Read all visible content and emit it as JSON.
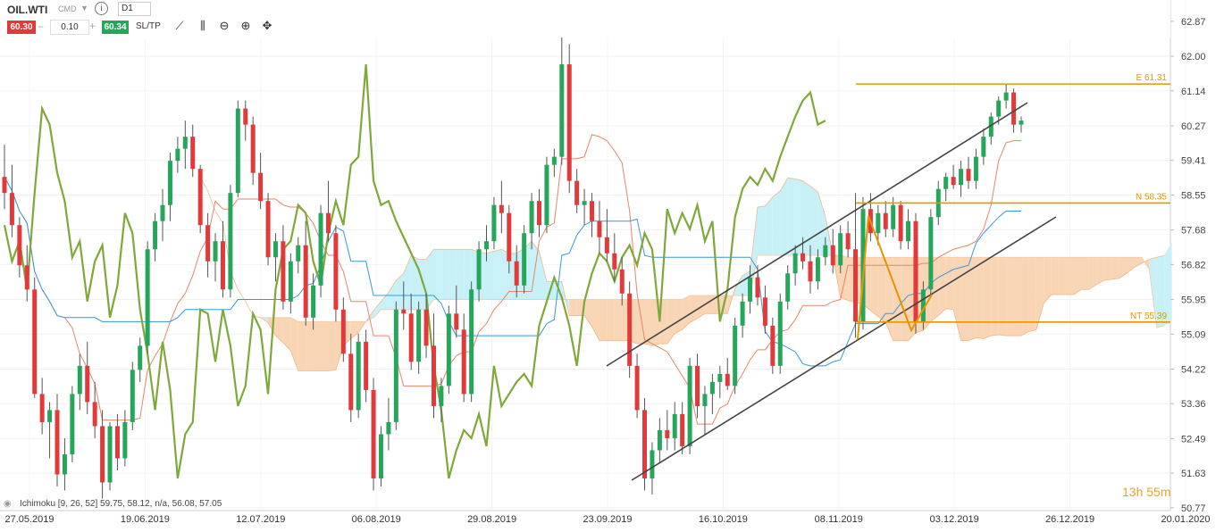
{
  "toolbar": {
    "symbol": "OIL.WTI",
    "type": "CMD",
    "info_icon": "info-icon",
    "timeframe": "D1",
    "sell_price": "60.30",
    "volume": "0.10",
    "buy_price": "60.34",
    "sltp_label": "SL/TP",
    "tools": [
      "line-tool-icon",
      "candles-icon",
      "zoom-out-icon",
      "zoom-in-icon",
      "crosshair-icon"
    ]
  },
  "indicator_label": "Ichimoku [9, 26, 52] 59.75, 58.12, n/a, 56.08, 57.05",
  "timer": "13h 55m",
  "colors": {
    "bull": "#26a65b",
    "bear": "#e23a3a",
    "cloud_bull": "#c7f0f7",
    "cloud_bear": "#f8d5b4",
    "chikou": "#7fa83a",
    "tenkan": "#e8866a",
    "kijun": "#3a97d9",
    "level": "#e69500",
    "channel": "#444444"
  },
  "chart_data": {
    "type": "candlestick",
    "instrument": "OIL.WTI",
    "timeframe": "D1",
    "y_ticks": [
      50.77,
      51.63,
      52.49,
      53.36,
      54.22,
      55.09,
      55.95,
      56.82,
      57.68,
      58.55,
      59.41,
      60.27,
      61.14,
      62.0,
      62.87
    ],
    "x_tick_labels": [
      "27.05.2019",
      "19.06.2019",
      "12.07.2019",
      "06.08.2019",
      "29.08.2019",
      "23.09.2019",
      "16.10.2019",
      "08.11.2019",
      "03.12.2019",
      "26.12.2019",
      "20.01.2020"
    ],
    "ylim": [
      50.7,
      63.4
    ],
    "levels": [
      {
        "label": "E 61.31",
        "value": 61.31
      },
      {
        "label": "N 58.35",
        "value": 58.35
      },
      {
        "label": "NT 55.39",
        "value": 55.39
      }
    ],
    "candles_ohlc_sample": [
      [
        59.0,
        59.8,
        58.2,
        58.6
      ],
      [
        58.6,
        59.3,
        57.5,
        57.8
      ],
      [
        57.8,
        58.0,
        56.5,
        56.8
      ],
      [
        56.8,
        57.3,
        55.9,
        56.2
      ],
      [
        56.2,
        56.5,
        53.5,
        53.6
      ],
      [
        53.6,
        54.0,
        52.6,
        52.9
      ],
      [
        52.9,
        53.4,
        52.0,
        53.2
      ],
      [
        53.2,
        53.6,
        51.3,
        51.6
      ],
      [
        51.6,
        52.5,
        51.2,
        52.1
      ],
      [
        52.1,
        53.8,
        51.9,
        53.6
      ],
      [
        53.6,
        54.6,
        53.2,
        54.3
      ],
      [
        54.3,
        54.9,
        53.1,
        53.4
      ],
      [
        53.4,
        53.9,
        52.5,
        52.8
      ],
      [
        52.8,
        53.2,
        51.0,
        51.4
      ],
      [
        51.4,
        52.9,
        51.2,
        52.8
      ],
      [
        52.8,
        53.1,
        51.7,
        52.0
      ],
      [
        52.0,
        53.2,
        51.8,
        52.9
      ],
      [
        52.9,
        54.4,
        52.7,
        54.2
      ],
      [
        54.2,
        55.0,
        53.9,
        54.8
      ],
      [
        54.8,
        57.4,
        54.6,
        57.2
      ],
      [
        57.2,
        58.1,
        56.9,
        57.9
      ],
      [
        57.9,
        58.7,
        57.4,
        58.3
      ],
      [
        58.3,
        59.6,
        57.9,
        59.4
      ],
      [
        59.4,
        60.0,
        59.1,
        59.7
      ],
      [
        59.7,
        60.4,
        59.2,
        60.0
      ],
      [
        60.0,
        60.3,
        59.0,
        59.2
      ],
      [
        59.2,
        59.3,
        57.6,
        57.8
      ],
      [
        57.8,
        58.1,
        56.5,
        56.9
      ],
      [
        56.9,
        57.6,
        56.4,
        57.4
      ],
      [
        57.4,
        57.9,
        56.0,
        56.2
      ],
      [
        56.2,
        58.8,
        56.0,
        58.6
      ],
      [
        58.6,
        60.9,
        58.5,
        60.7
      ],
      [
        60.7,
        60.9,
        59.9,
        60.3
      ],
      [
        60.3,
        60.5,
        58.8,
        59.1
      ],
      [
        59.1,
        59.6,
        58.2,
        58.4
      ],
      [
        58.4,
        58.6,
        56.8,
        57.0
      ],
      [
        57.0,
        57.6,
        56.4,
        57.4
      ],
      [
        57.4,
        57.8,
        55.7,
        55.9
      ],
      [
        55.9,
        57.1,
        55.6,
        56.9
      ],
      [
        56.9,
        57.5,
        56.6,
        57.3
      ],
      [
        57.3,
        57.9,
        55.3,
        55.5
      ],
      [
        55.5,
        56.6,
        55.2,
        56.3
      ],
      [
        56.3,
        58.3,
        56.0,
        58.1
      ],
      [
        58.1,
        58.9,
        57.4,
        57.6
      ],
      [
        57.6,
        57.8,
        55.4,
        55.7
      ],
      [
        55.7,
        56.0,
        54.4,
        54.6
      ],
      [
        54.6,
        55.1,
        52.9,
        53.2
      ],
      [
        53.2,
        55.1,
        53.0,
        54.9
      ],
      [
        54.9,
        55.2,
        53.4,
        53.7
      ],
      [
        53.7,
        54.0,
        51.2,
        51.5
      ],
      [
        51.5,
        52.8,
        51.3,
        52.6
      ],
      [
        52.6,
        53.5,
        52.2,
        52.9
      ],
      [
        52.9,
        55.9,
        52.7,
        55.7
      ],
      [
        55.7,
        56.4,
        55.2,
        55.6
      ],
      [
        55.6,
        56.1,
        54.2,
        54.4
      ],
      [
        54.4,
        55.9,
        54.1,
        55.7
      ],
      [
        55.7,
        56.1,
        54.5,
        54.8
      ],
      [
        54.8,
        55.6,
        53.0,
        53.3
      ],
      [
        53.3,
        54.0,
        52.9,
        53.8
      ],
      [
        53.8,
        55.8,
        53.6,
        55.6
      ],
      [
        55.6,
        56.3,
        55.0,
        55.2
      ],
      [
        55.2,
        55.6,
        53.4,
        53.6
      ],
      [
        53.6,
        56.4,
        53.4,
        56.2
      ],
      [
        56.2,
        57.4,
        55.9,
        57.2
      ],
      [
        57.2,
        57.8,
        56.9,
        57.4
      ],
      [
        57.4,
        58.5,
        57.2,
        58.3
      ],
      [
        58.3,
        58.9,
        57.6,
        58.1
      ],
      [
        58.1,
        58.3,
        56.6,
        56.9
      ],
      [
        56.9,
        57.3,
        56.0,
        56.3
      ],
      [
        56.3,
        57.8,
        56.1,
        57.6
      ],
      [
        57.6,
        58.6,
        57.2,
        58.4
      ],
      [
        58.4,
        58.7,
        57.5,
        57.8
      ],
      [
        57.8,
        59.5,
        57.6,
        59.3
      ],
      [
        59.3,
        59.7,
        59.0,
        59.5
      ],
      [
        59.5,
        62.9,
        59.3,
        61.8
      ],
      [
        61.8,
        62.3,
        58.6,
        58.9
      ],
      [
        58.9,
        59.2,
        58.1,
        58.3
      ],
      [
        58.3,
        58.7,
        57.8,
        58.4
      ],
      [
        58.4,
        58.6,
        57.5,
        57.9
      ],
      [
        57.9,
        58.4,
        57.1,
        57.5
      ],
      [
        57.5,
        58.2,
        56.9,
        57.1
      ],
      [
        57.1,
        57.6,
        56.4,
        56.7
      ],
      [
        56.7,
        57.0,
        55.8,
        56.1
      ],
      [
        56.1,
        56.4,
        54.0,
        54.3
      ],
      [
        54.3,
        54.6,
        53.0,
        53.2
      ],
      [
        53.2,
        53.5,
        51.2,
        51.5
      ],
      [
        51.5,
        52.4,
        51.1,
        52.2
      ],
      [
        52.2,
        53.0,
        51.9,
        52.7
      ],
      [
        52.7,
        53.2,
        52.2,
        52.5
      ],
      [
        52.5,
        53.4,
        52.2,
        53.1
      ],
      [
        53.1,
        53.4,
        52.1,
        52.3
      ],
      [
        52.3,
        54.5,
        52.1,
        54.3
      ],
      [
        54.3,
        54.6,
        53.0,
        53.3
      ],
      [
        53.3,
        53.8,
        52.6,
        53.6
      ],
      [
        53.6,
        54.1,
        53.1,
        53.9
      ],
      [
        53.9,
        54.3,
        53.5,
        54.1
      ],
      [
        54.1,
        54.5,
        53.7,
        53.8
      ],
      [
        53.8,
        55.5,
        53.6,
        55.3
      ],
      [
        55.3,
        56.1,
        55.0,
        55.9
      ],
      [
        55.9,
        56.8,
        55.6,
        56.5
      ],
      [
        56.5,
        56.8,
        55.8,
        56.0
      ],
      [
        56.0,
        56.3,
        55.1,
        55.3
      ],
      [
        55.3,
        55.5,
        54.1,
        54.3
      ],
      [
        54.3,
        56.1,
        54.1,
        55.9
      ],
      [
        55.9,
        56.8,
        55.7,
        56.6
      ],
      [
        56.6,
        57.3,
        56.3,
        57.1
      ],
      [
        57.1,
        57.5,
        56.7,
        56.9
      ],
      [
        56.9,
        57.3,
        56.1,
        56.4
      ],
      [
        56.4,
        57.2,
        56.2,
        57.0
      ],
      [
        57.0,
        57.5,
        56.8,
        57.3
      ],
      [
        57.3,
        57.7,
        56.6,
        56.8
      ],
      [
        56.8,
        57.8,
        56.6,
        57.6
      ],
      [
        57.6,
        57.9,
        57.0,
        57.2
      ],
      [
        57.2,
        58.6,
        55.0,
        55.4
      ],
      [
        55.4,
        58.5,
        55.2,
        58.2
      ],
      [
        58.2,
        58.6,
        57.4,
        57.6
      ],
      [
        57.6,
        58.3,
        57.3,
        58.1
      ],
      [
        58.1,
        58.4,
        57.5,
        57.7
      ],
      [
        57.7,
        58.5,
        57.5,
        58.3
      ],
      [
        58.3,
        58.4,
        57.2,
        57.4
      ],
      [
        57.4,
        58.2,
        57.2,
        57.9
      ],
      [
        57.9,
        58.1,
        55.1,
        55.4
      ],
      [
        55.4,
        56.4,
        55.2,
        56.2
      ],
      [
        56.2,
        58.2,
        56.0,
        58.0
      ],
      [
        58.0,
        58.9,
        57.8,
        58.7
      ],
      [
        58.7,
        59.1,
        58.4,
        59.0
      ],
      [
        59.0,
        59.3,
        58.7,
        58.8
      ],
      [
        58.8,
        59.4,
        58.5,
        59.2
      ],
      [
        59.2,
        59.5,
        58.7,
        58.9
      ],
      [
        58.9,
        59.7,
        58.7,
        59.5
      ],
      [
        59.5,
        60.2,
        59.3,
        60.0
      ],
      [
        60.0,
        60.6,
        59.8,
        60.5
      ],
      [
        60.5,
        61.0,
        60.3,
        60.9
      ],
      [
        60.9,
        61.3,
        60.7,
        61.1
      ],
      [
        61.1,
        61.2,
        60.1,
        60.3
      ],
      [
        60.3,
        60.5,
        60.1,
        60.4
      ]
    ]
  }
}
